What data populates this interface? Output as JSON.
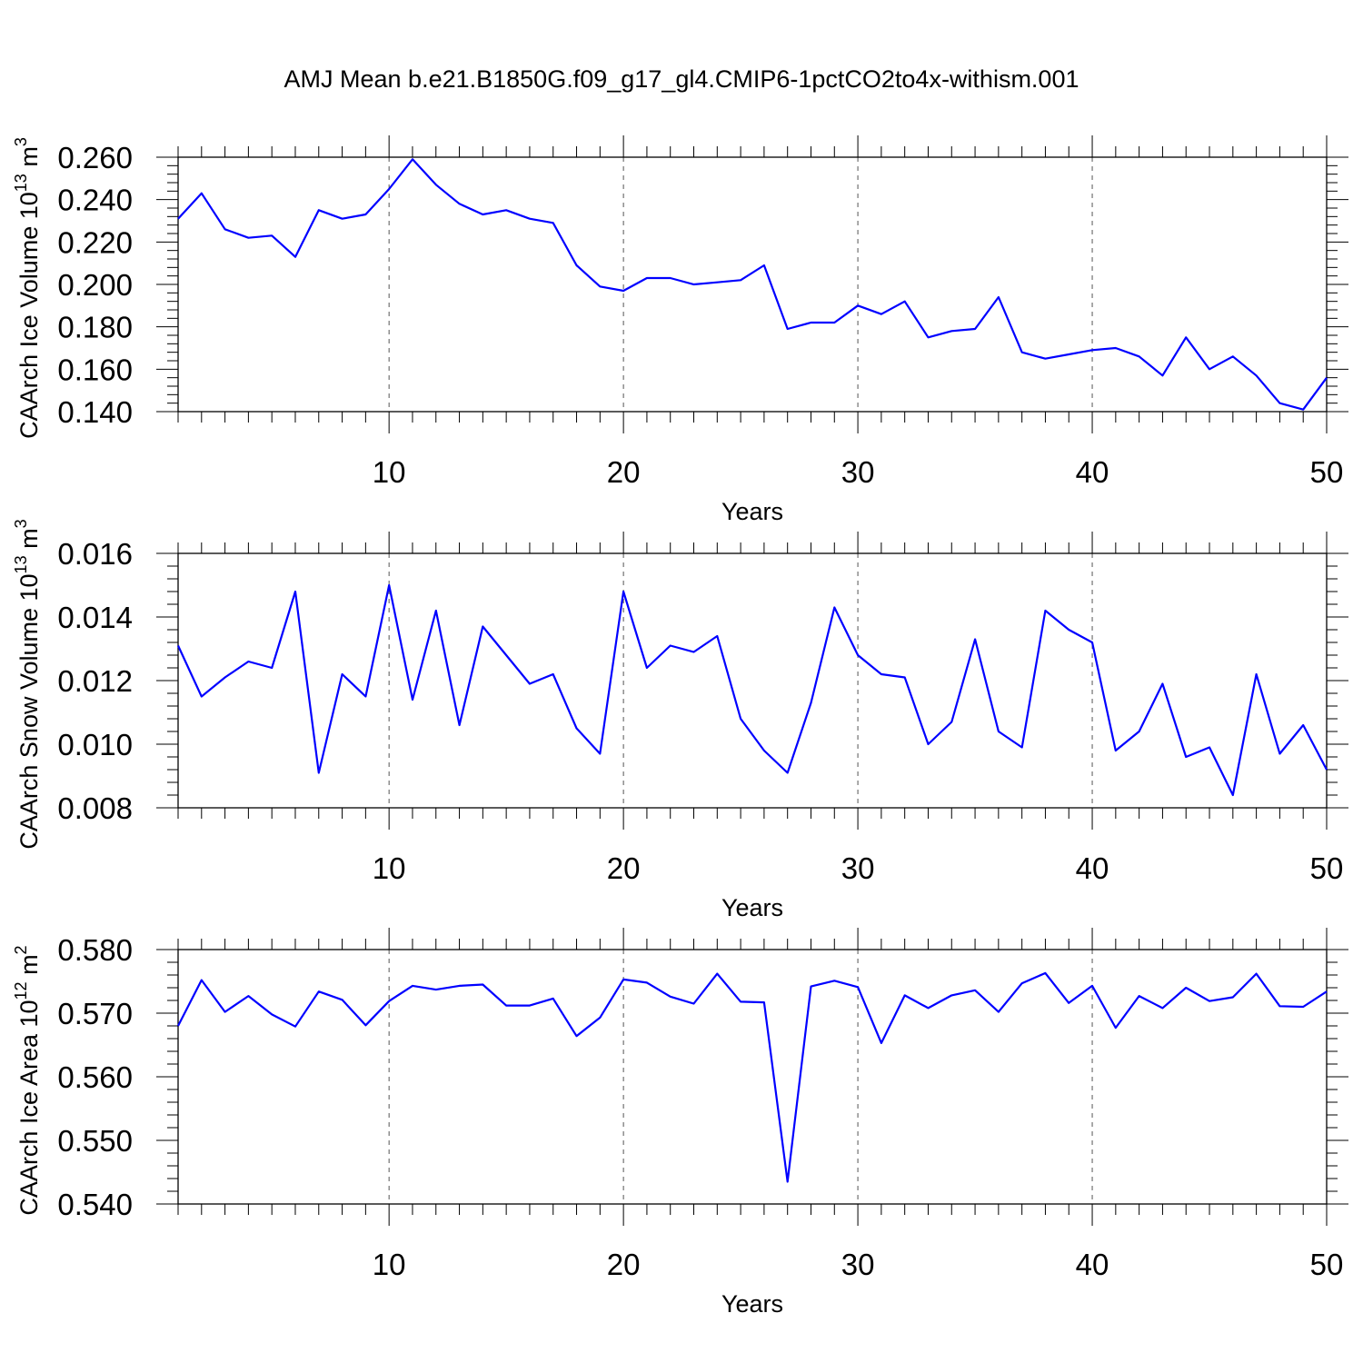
{
  "title": "AMJ Mean b.e21.B1850G.f09_g17_gl4.CMIP6-1pctCO2to4x-withism.001",
  "line_color": "#0000ff",
  "chart_data": [
    {
      "type": "line",
      "xlabel": "Years",
      "ylabel_main": "CAArch Ice Volume 10",
      "ylabel_exp": "13",
      "ylabel_unit": " m",
      "ylabel_unit_exp": "3",
      "xlim": [
        1,
        50
      ],
      "ylim": [
        0.14,
        0.26
      ],
      "yticks": [
        "0.140",
        "0.160",
        "0.180",
        "0.200",
        "0.220",
        "0.240",
        "0.260"
      ],
      "xticks": [
        "10",
        "20",
        "30",
        "40",
        "50"
      ],
      "grid_x": true,
      "x": [
        1,
        2,
        3,
        4,
        5,
        6,
        7,
        8,
        9,
        10,
        11,
        12,
        13,
        14,
        15,
        16,
        17,
        18,
        19,
        20,
        21,
        22,
        23,
        24,
        25,
        26,
        27,
        28,
        29,
        30,
        31,
        32,
        33,
        34,
        35,
        36,
        37,
        38,
        39,
        40,
        41,
        42,
        43,
        44,
        45,
        46,
        47,
        48,
        49,
        50
      ],
      "y": [
        0.231,
        0.243,
        0.226,
        0.222,
        0.223,
        0.213,
        0.235,
        0.231,
        0.233,
        0.245,
        0.259,
        0.247,
        0.238,
        0.233,
        0.235,
        0.231,
        0.229,
        0.209,
        0.199,
        0.197,
        0.203,
        0.203,
        0.2,
        0.201,
        0.202,
        0.209,
        0.179,
        0.182,
        0.182,
        0.19,
        0.186,
        0.192,
        0.175,
        0.178,
        0.179,
        0.194,
        0.168,
        0.165,
        0.167,
        0.169,
        0.17,
        0.166,
        0.157,
        0.175,
        0.16,
        0.166,
        0.157,
        0.144,
        0.141,
        0.156
      ]
    },
    {
      "type": "line",
      "xlabel": "Years",
      "ylabel_main": "CAArch Snow Volume 10",
      "ylabel_exp": "13",
      "ylabel_unit": " m",
      "ylabel_unit_exp": "3",
      "xlim": [
        1,
        50
      ],
      "ylim": [
        0.008,
        0.016
      ],
      "yticks": [
        "0.008",
        "0.010",
        "0.012",
        "0.014",
        "0.016"
      ],
      "xticks": [
        "10",
        "20",
        "30",
        "40",
        "50"
      ],
      "grid_x": true,
      "x": [
        1,
        2,
        3,
        4,
        5,
        6,
        7,
        8,
        9,
        10,
        11,
        12,
        13,
        14,
        15,
        16,
        17,
        18,
        19,
        20,
        21,
        22,
        23,
        24,
        25,
        26,
        27,
        28,
        29,
        30,
        31,
        32,
        33,
        34,
        35,
        36,
        37,
        38,
        39,
        40,
        41,
        42,
        43,
        44,
        45,
        46,
        47,
        48,
        49,
        50
      ],
      "y": [
        0.0131,
        0.0115,
        0.0121,
        0.0126,
        0.0124,
        0.0148,
        0.0091,
        0.0122,
        0.0115,
        0.015,
        0.0114,
        0.0142,
        0.0106,
        0.0137,
        0.0128,
        0.0119,
        0.0122,
        0.0105,
        0.0097,
        0.0148,
        0.0124,
        0.0131,
        0.0129,
        0.0134,
        0.0108,
        0.0098,
        0.0091,
        0.0113,
        0.0143,
        0.0128,
        0.0122,
        0.0121,
        0.01,
        0.0107,
        0.0133,
        0.0104,
        0.0099,
        0.0142,
        0.0136,
        0.0132,
        0.0098,
        0.0104,
        0.0119,
        0.0096,
        0.0099,
        0.0084,
        0.0122,
        0.0097,
        0.0106,
        0.0092
      ]
    },
    {
      "type": "line",
      "xlabel": "Years",
      "ylabel_main": "CAArch Ice Area 10",
      "ylabel_exp": "12",
      "ylabel_unit": " m",
      "ylabel_unit_exp": "2",
      "xlim": [
        1,
        50
      ],
      "ylim": [
        0.54,
        0.58
      ],
      "yticks": [
        "0.540",
        "0.550",
        "0.560",
        "0.570",
        "0.580"
      ],
      "xticks": [
        "10",
        "20",
        "30",
        "40",
        "50"
      ],
      "grid_x": true,
      "x": [
        1,
        2,
        3,
        4,
        5,
        6,
        7,
        8,
        9,
        10,
        11,
        12,
        13,
        14,
        15,
        16,
        17,
        18,
        19,
        20,
        21,
        22,
        23,
        24,
        25,
        26,
        27,
        28,
        29,
        30,
        31,
        32,
        33,
        34,
        35,
        36,
        37,
        38,
        39,
        40,
        41,
        42,
        43,
        44,
        45,
        46,
        47,
        48,
        49,
        50
      ],
      "y": [
        0.568,
        0.5752,
        0.5702,
        0.5727,
        0.5698,
        0.5679,
        0.5734,
        0.5721,
        0.5681,
        0.5719,
        0.5743,
        0.5737,
        0.5743,
        0.5745,
        0.5712,
        0.5712,
        0.5723,
        0.5664,
        0.5693,
        0.5753,
        0.5748,
        0.5726,
        0.5715,
        0.5762,
        0.5718,
        0.5717,
        0.5435,
        0.5742,
        0.5751,
        0.5741,
        0.5653,
        0.5728,
        0.5708,
        0.5728,
        0.5736,
        0.5702,
        0.5747,
        0.5763,
        0.5716,
        0.5743,
        0.5677,
        0.5727,
        0.5708,
        0.574,
        0.5719,
        0.5725,
        0.5762,
        0.5711,
        0.571,
        0.5734
      ]
    }
  ]
}
